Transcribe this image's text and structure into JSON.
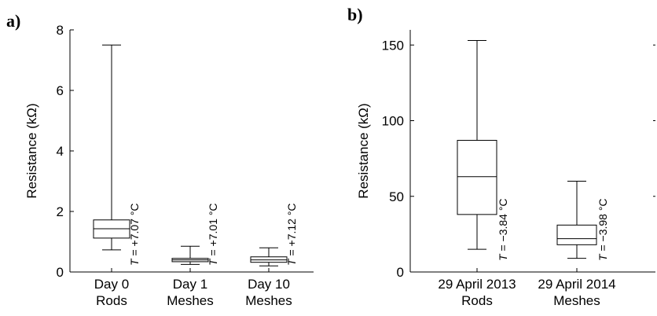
{
  "chart_data": [
    {
      "panel": "a)",
      "type": "box",
      "ylabel": "Resistance (kΩ)",
      "ylim": [
        0,
        8
      ],
      "yticks": [
        0,
        2,
        4,
        6,
        8
      ],
      "categories": [
        {
          "line1": "Day 0",
          "line2": "Rods"
        },
        {
          "line1": "Day 1",
          "line2": "Meshes"
        },
        {
          "line1": "Day 10",
          "line2": "Meshes"
        }
      ],
      "boxes": [
        {
          "min": 0.73,
          "q1": 1.12,
          "median": 1.43,
          "q3": 1.72,
          "max": 7.5,
          "annotation": "T = +7.07 °C"
        },
        {
          "min": 0.25,
          "q1": 0.34,
          "median": 0.4,
          "q3": 0.45,
          "max": 0.85,
          "annotation": "T = +7.01 °C"
        },
        {
          "min": 0.2,
          "q1": 0.32,
          "median": 0.4,
          "q3": 0.5,
          "max": 0.8,
          "annotation": "T = +7.12 °C"
        }
      ]
    },
    {
      "panel": "b)",
      "type": "box",
      "ylabel": "Resistance (kΩ)",
      "ylim": [
        0,
        160
      ],
      "yticks": [
        0,
        50,
        100,
        150
      ],
      "categories": [
        {
          "line1": "29 April 2013",
          "line2": "Rods"
        },
        {
          "line1": "29 April 2014",
          "line2": "Meshes"
        }
      ],
      "boxes": [
        {
          "min": 15,
          "q1": 38,
          "median": 63,
          "q3": 87,
          "max": 153,
          "annotation": "T = −3.84 °C"
        },
        {
          "min": 9,
          "q1": 18,
          "median": 22,
          "q3": 31,
          "max": 60,
          "annotation": "T = −3.98 °C"
        }
      ]
    }
  ]
}
